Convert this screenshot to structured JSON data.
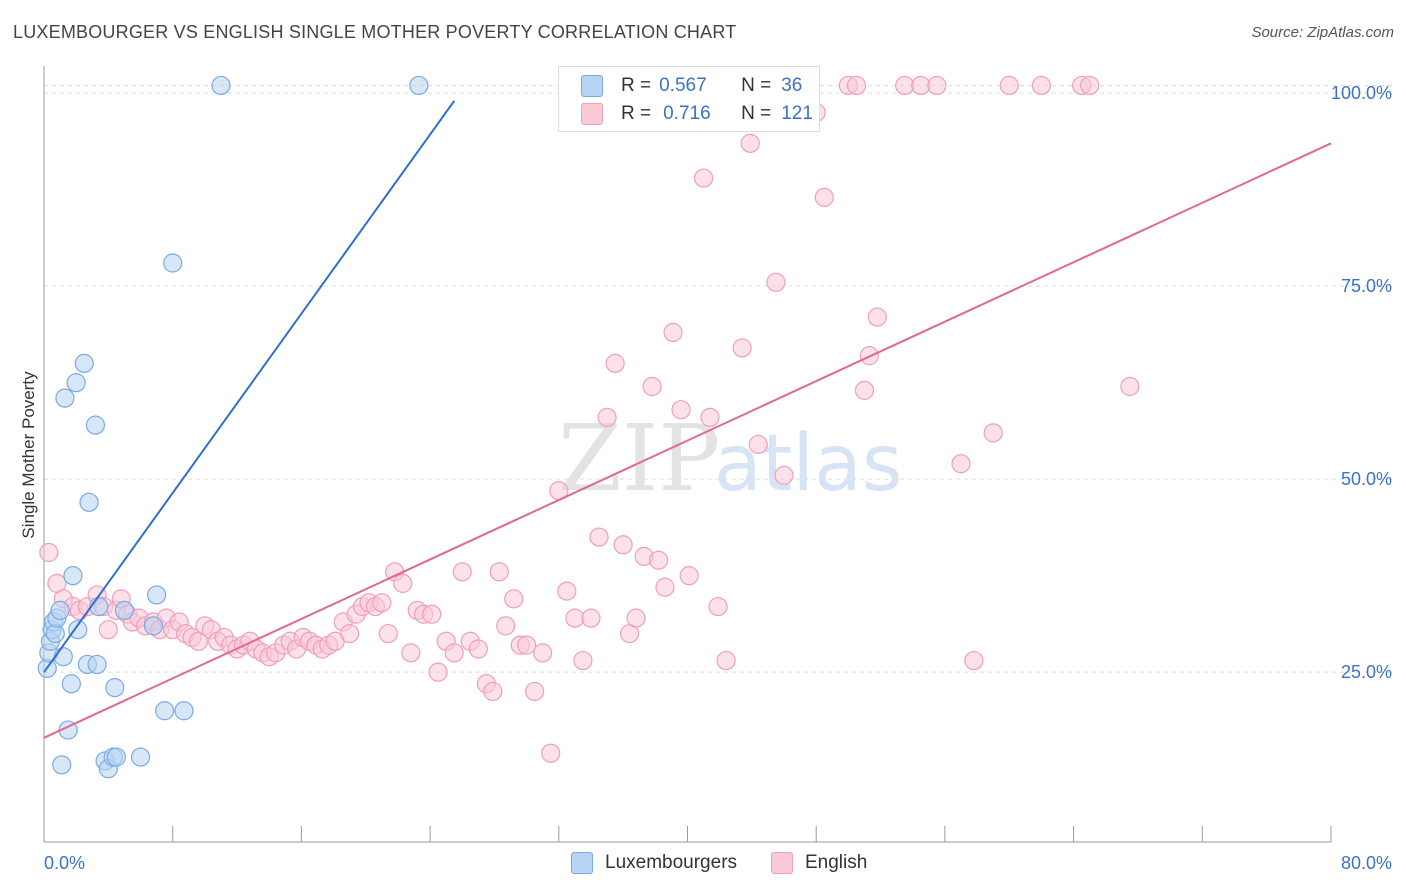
{
  "title": "LUXEMBOURGER VS ENGLISH SINGLE MOTHER POVERTY CORRELATION CHART",
  "source": "Source: ZipAtlas.com",
  "watermark": {
    "zip": "ZIP",
    "atlas": "atlas"
  },
  "legend": {
    "rows": [
      {
        "r_label": "R =",
        "r_value": "0.567",
        "n_label": "N =",
        "n_value": "36"
      },
      {
        "r_label": "R =",
        "r_value": "0.716",
        "n_label": "N =",
        "n_value": "121"
      }
    ]
  },
  "bottom_legend": [
    "Luxembourgers",
    "English"
  ],
  "colors": {
    "luxembourgers_fill": "#b8d4f3",
    "luxembourgers_stroke": "#7aaae6",
    "luxembourgers_line": "#2f6fd0",
    "english_fill": "#f9c9d8",
    "english_stroke": "#ef9fb8",
    "english_line": "#e0678f",
    "tick_label": "#3a73c6",
    "grid": "#dddddd"
  },
  "chart_data": {
    "type": "scatter",
    "title": "LUXEMBOURGER VS ENGLISH SINGLE MOTHER POVERTY CORRELATION CHART",
    "xlabel": "",
    "ylabel": "Single Mother Poverty",
    "xlim": [
      0,
      80
    ],
    "ylim": [
      3,
      103
    ],
    "x_tick_labels": [
      "0.0%",
      "80.0%"
    ],
    "y_ticks": [
      25,
      50,
      75,
      100
    ],
    "y_tick_labels": [
      "25.0%",
      "50.0%",
      "75.0%",
      "100.0%"
    ],
    "grid": true,
    "series": [
      {
        "name": "Luxembourgers",
        "r": 0.567,
        "n": 36,
        "trend": {
          "x": [
            0,
            25.5
          ],
          "y": [
            25,
            99
          ]
        },
        "points": [
          [
            0.2,
            25.5
          ],
          [
            0.3,
            27.5
          ],
          [
            0.4,
            29.0
          ],
          [
            0.5,
            30.5
          ],
          [
            0.6,
            31.5
          ],
          [
            0.7,
            30.0
          ],
          [
            0.8,
            32.0
          ],
          [
            1.0,
            33.0
          ],
          [
            1.1,
            13.0
          ],
          [
            1.2,
            27.0
          ],
          [
            1.3,
            60.5
          ],
          [
            1.5,
            17.5
          ],
          [
            1.7,
            23.5
          ],
          [
            1.8,
            37.5
          ],
          [
            2.0,
            62.5
          ],
          [
            2.1,
            30.5
          ],
          [
            2.5,
            65.0
          ],
          [
            2.7,
            26.0
          ],
          [
            2.8,
            47.0
          ],
          [
            3.2,
            57.0
          ],
          [
            3.3,
            26.0
          ],
          [
            3.4,
            33.5
          ],
          [
            3.8,
            13.5
          ],
          [
            4.0,
            12.5
          ],
          [
            4.3,
            14.0
          ],
          [
            4.4,
            23.0
          ],
          [
            4.5,
            14.0
          ],
          [
            6.0,
            14.0
          ],
          [
            6.8,
            31.0
          ],
          [
            7.0,
            35.0
          ],
          [
            7.5,
            20.0
          ],
          [
            8.0,
            78.0
          ],
          [
            8.7,
            20.0
          ],
          [
            11.0,
            101.0
          ],
          [
            23.3,
            101.0
          ],
          [
            5.0,
            33.0
          ]
        ]
      },
      {
        "name": "English",
        "r": 0.716,
        "n": 121,
        "trend": {
          "x": [
            0,
            80
          ],
          "y": [
            16.5,
            93.5
          ]
        },
        "points": [
          [
            0.3,
            40.5
          ],
          [
            0.8,
            36.5
          ],
          [
            1.2,
            34.5
          ],
          [
            1.8,
            33.5
          ],
          [
            2.2,
            33.0
          ],
          [
            2.7,
            33.5
          ],
          [
            3.3,
            35.0
          ],
          [
            3.7,
            33.5
          ],
          [
            4.0,
            30.5
          ],
          [
            4.5,
            33.0
          ],
          [
            4.8,
            34.5
          ],
          [
            5.2,
            32.5
          ],
          [
            5.5,
            31.5
          ],
          [
            5.9,
            32.0
          ],
          [
            6.3,
            31.0
          ],
          [
            6.8,
            31.5
          ],
          [
            7.2,
            30.5
          ],
          [
            7.6,
            32.0
          ],
          [
            8.0,
            30.5
          ],
          [
            8.4,
            31.5
          ],
          [
            8.8,
            30.0
          ],
          [
            9.2,
            29.5
          ],
          [
            9.6,
            29.0
          ],
          [
            10.0,
            31.0
          ],
          [
            10.4,
            30.5
          ],
          [
            10.8,
            29.0
          ],
          [
            11.2,
            29.5
          ],
          [
            11.6,
            28.5
          ],
          [
            12.0,
            28.0
          ],
          [
            12.4,
            28.5
          ],
          [
            12.8,
            29.0
          ],
          [
            13.2,
            28.0
          ],
          [
            13.6,
            27.5
          ],
          [
            14.0,
            27.0
          ],
          [
            14.4,
            27.5
          ],
          [
            14.9,
            28.5
          ],
          [
            15.3,
            29.0
          ],
          [
            15.7,
            28.0
          ],
          [
            16.1,
            29.5
          ],
          [
            16.5,
            29.0
          ],
          [
            16.9,
            28.5
          ],
          [
            17.3,
            28.0
          ],
          [
            17.7,
            28.5
          ],
          [
            18.1,
            29.0
          ],
          [
            18.6,
            31.5
          ],
          [
            19.0,
            30.0
          ],
          [
            19.4,
            32.5
          ],
          [
            19.8,
            33.5
          ],
          [
            20.2,
            34.0
          ],
          [
            20.6,
            33.5
          ],
          [
            21.0,
            34.0
          ],
          [
            21.4,
            30.0
          ],
          [
            21.8,
            38.0
          ],
          [
            22.3,
            36.5
          ],
          [
            22.8,
            27.5
          ],
          [
            23.2,
            33.0
          ],
          [
            23.6,
            32.5
          ],
          [
            24.1,
            32.5
          ],
          [
            24.5,
            25.0
          ],
          [
            25.0,
            29.0
          ],
          [
            25.5,
            27.5
          ],
          [
            26.0,
            38.0
          ],
          [
            26.5,
            29.0
          ],
          [
            27.0,
            28.0
          ],
          [
            27.5,
            23.5
          ],
          [
            27.9,
            22.5
          ],
          [
            28.3,
            38.0
          ],
          [
            28.7,
            31.0
          ],
          [
            29.2,
            34.5
          ],
          [
            29.6,
            28.5
          ],
          [
            30.0,
            28.5
          ],
          [
            30.5,
            22.5
          ],
          [
            31.0,
            27.5
          ],
          [
            31.5,
            14.5
          ],
          [
            32.0,
            48.5
          ],
          [
            32.5,
            35.5
          ],
          [
            33.0,
            32.0
          ],
          [
            33.5,
            26.5
          ],
          [
            34.0,
            32.0
          ],
          [
            34.5,
            42.5
          ],
          [
            35.0,
            58.0
          ],
          [
            35.5,
            65.0
          ],
          [
            36.0,
            41.5
          ],
          [
            36.4,
            30.0
          ],
          [
            36.8,
            32.0
          ],
          [
            37.3,
            40.0
          ],
          [
            37.8,
            62.0
          ],
          [
            38.2,
            39.5
          ],
          [
            38.6,
            36.0
          ],
          [
            39.1,
            69.0
          ],
          [
            39.6,
            59.0
          ],
          [
            40.1,
            37.5
          ],
          [
            40.6,
            101.0
          ],
          [
            41.0,
            89.0
          ],
          [
            41.4,
            58.0
          ],
          [
            41.9,
            33.5
          ],
          [
            42.4,
            26.5
          ],
          [
            42.9,
            101.0
          ],
          [
            43.4,
            67.0
          ],
          [
            43.9,
            93.5
          ],
          [
            44.4,
            54.5
          ],
          [
            44.9,
            101.0
          ],
          [
            45.5,
            75.5
          ],
          [
            46.0,
            50.5
          ],
          [
            47.3,
            101.0
          ],
          [
            48.0,
            97.5
          ],
          [
            48.5,
            86.5
          ],
          [
            50.0,
            101.0
          ],
          [
            50.5,
            101.0
          ],
          [
            51.0,
            61.5
          ],
          [
            51.3,
            66.0
          ],
          [
            51.8,
            71.0
          ],
          [
            53.5,
            101.0
          ],
          [
            54.5,
            101.0
          ],
          [
            55.5,
            101.0
          ],
          [
            57.0,
            52.0
          ],
          [
            57.8,
            26.5
          ],
          [
            59.0,
            56.0
          ],
          [
            60.0,
            101.0
          ],
          [
            62.0,
            101.0
          ],
          [
            64.5,
            101.0
          ],
          [
            65.0,
            101.0
          ],
          [
            67.5,
            62.0
          ]
        ]
      }
    ]
  }
}
